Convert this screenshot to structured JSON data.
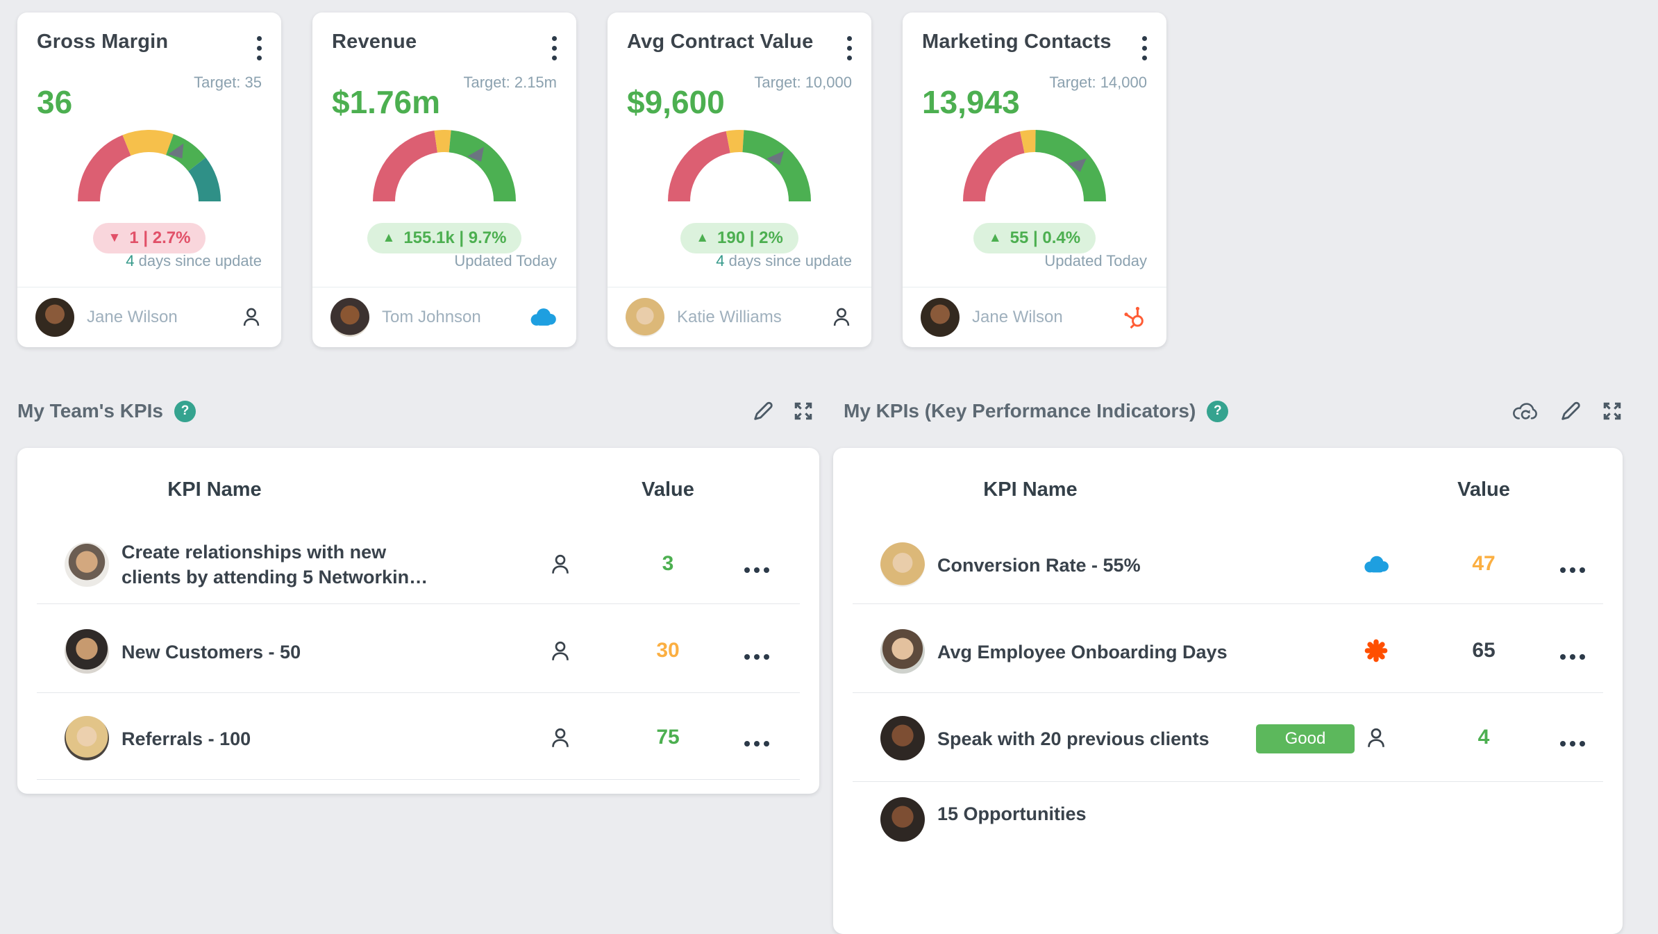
{
  "colors": {
    "background": "#ebecef",
    "card": "#ffffff",
    "green": "#4caf50",
    "orange": "#fbaf42",
    "dark": "#39424b",
    "teal_accent": "#35a38f",
    "muted_text": "#8ba1af",
    "good_badge": "#5cb85c",
    "salesforce_blue": "#1e9fe0",
    "hubspot_orange": "#ff5c35",
    "zapier_orange": "#ff4f00",
    "gauge": {
      "red": "#dc5f72",
      "yellow": "#f6c04b",
      "green": "#4cb052",
      "teal": "#2f9087",
      "needle": "#6b7580"
    }
  },
  "gauge_cards": [
    {
      "title": "Gross Margin",
      "target_label": "Target: 35",
      "value": "36",
      "badge": {
        "arrow": "▼",
        "direction": "down",
        "text": "1  |  2.7%"
      },
      "updated_highlight": "4",
      "updated_rest": " days since update",
      "owner": "Jane Wilson",
      "owner_icon": "person-icon",
      "gauge": {
        "type": "gauge",
        "segments": [
          {
            "color": "red",
            "from": 0,
            "to": 0.378
          },
          {
            "color": "yellow",
            "from": 0.378,
            "to": 0.61
          },
          {
            "color": "green",
            "from": 0.61,
            "to": 0.79
          },
          {
            "color": "teal",
            "from": 0.79,
            "to": 1
          }
        ],
        "needle": 0.62
      }
    },
    {
      "title": "Revenue",
      "target_label": "Target: 2.15m",
      "value": "$1.76m",
      "badge": {
        "arrow": "▲",
        "direction": "up",
        "text": "155.1k  |  9.7%"
      },
      "updated_highlight": "",
      "updated_rest": "Updated Today",
      "owner": "Tom Johnson",
      "owner_icon": "salesforce-icon",
      "gauge": {
        "type": "gauge",
        "segments": [
          {
            "color": "red",
            "from": 0,
            "to": 0.455
          },
          {
            "color": "yellow",
            "from": 0.455,
            "to": 0.53
          },
          {
            "color": "green",
            "from": 0.53,
            "to": 1
          }
        ],
        "needle": 0.65
      }
    },
    {
      "title": "Avg Contract Value",
      "target_label": "Target: 10,000",
      "value": "$9,600",
      "badge": {
        "arrow": "▲",
        "direction": "up",
        "text": "190  |  2%"
      },
      "updated_highlight": "4",
      "updated_rest": " days since update",
      "owner": "Katie Williams",
      "owner_icon": "person-icon",
      "gauge": {
        "type": "gauge",
        "segments": [
          {
            "color": "red",
            "from": 0,
            "to": 0.44
          },
          {
            "color": "yellow",
            "from": 0.44,
            "to": 0.52
          },
          {
            "color": "green",
            "from": 0.52,
            "to": 1
          }
        ],
        "needle": 0.68
      }
    },
    {
      "title": "Marketing Contacts",
      "target_label": "Target: 14,000",
      "value": "13,943",
      "badge": {
        "arrow": "▲",
        "direction": "up",
        "text": "55  |  0.4%"
      },
      "updated_highlight": "",
      "updated_rest": "Updated Today",
      "owner": "Jane Wilson",
      "owner_icon": "hubspot-icon",
      "gauge": {
        "type": "gauge",
        "segments": [
          {
            "color": "red",
            "from": 0,
            "to": 0.435
          },
          {
            "color": "yellow",
            "from": 0.435,
            "to": 0.505
          },
          {
            "color": "green",
            "from": 0.505,
            "to": 1
          }
        ],
        "needle": 0.73
      }
    }
  ],
  "sections": [
    {
      "title": "My Team's KPIs",
      "help_label": "?",
      "tools": [
        "edit-icon",
        "expand-icon"
      ]
    },
    {
      "title": "My KPIs (Key Performance Indicators)",
      "help_label": "?",
      "tools": [
        "cloud-sync-icon",
        "edit-icon",
        "expand-icon"
      ]
    }
  ],
  "tables": [
    {
      "columns": {
        "name": "KPI Name",
        "value": "Value"
      },
      "rows": [
        {
          "name": "Create relationships with new clients by attending 5 Networkin…",
          "icon": "person-icon",
          "value": "3",
          "value_color": "green",
          "menu": "ellipsis-menu"
        },
        {
          "name": "New Customers - 50",
          "icon": "person-icon",
          "value": "30",
          "value_color": "orange",
          "menu": "ellipsis-menu"
        },
        {
          "name": "Referrals - 100",
          "icon": "person-icon",
          "value": "75",
          "value_color": "green",
          "menu": "ellipsis-menu"
        }
      ]
    },
    {
      "columns": {
        "name": "KPI Name",
        "value": "Value"
      },
      "rows": [
        {
          "name": "Conversion Rate - 55%",
          "icon": "salesforce-icon",
          "value": "47",
          "value_color": "orange",
          "menu": "ellipsis-menu"
        },
        {
          "name": "Avg Employee Onboarding Days",
          "icon": "zapier-icon",
          "value": "65",
          "value_color": "dark",
          "menu": "ellipsis-menu"
        },
        {
          "name": "Speak with 20 previous clients",
          "status_badge": "Good",
          "icon": "person-icon",
          "value": "4",
          "value_color": "green",
          "menu": "ellipsis-menu"
        },
        {
          "name": "15 Opportunities",
          "partial": true
        }
      ]
    }
  ]
}
